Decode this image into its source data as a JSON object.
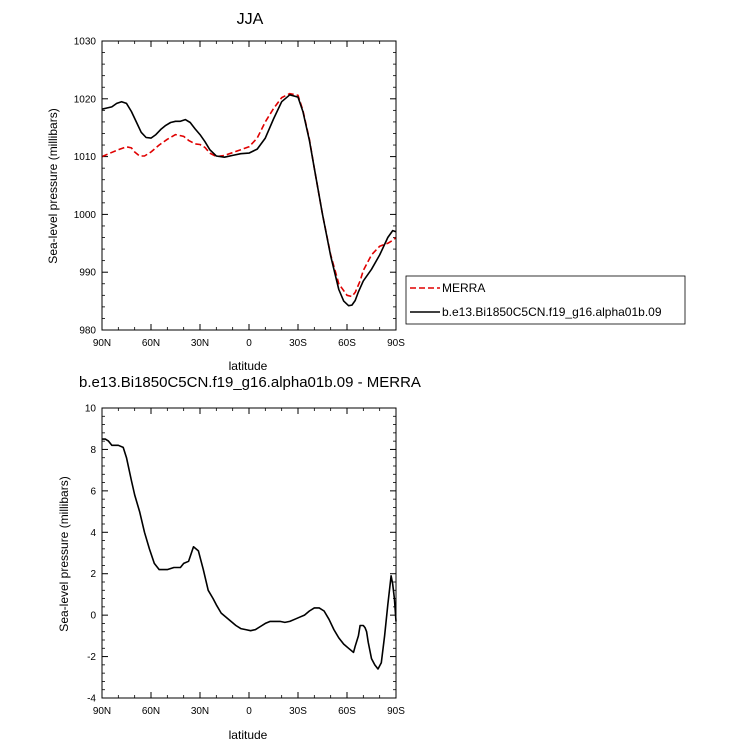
{
  "chart_data": [
    {
      "type": "line",
      "title": "JJA",
      "xlabel": "latitude",
      "ylabel": "Sea-level pressure (millibars)",
      "xlim": [
        90,
        -90
      ],
      "ylim": [
        980,
        1030
      ],
      "xtick_labels": [
        "90N",
        "60N",
        "30N",
        "0",
        "30S",
        "60S",
        "90S"
      ],
      "xtick_values": [
        90,
        60,
        30,
        0,
        -30,
        -60,
        -90
      ],
      "ytick_values": [
        980,
        990,
        1000,
        1010,
        1020,
        1030
      ],
      "legend": {
        "placement": "right",
        "entries": [
          "MERRA",
          "b.e13.Bi1850C5CN.f19_g16.alpha01b.09"
        ]
      },
      "series": [
        {
          "name": "MERRA",
          "color": "#e00000",
          "dash": "dashed",
          "x": [
            90,
            85,
            80,
            75,
            72,
            70,
            67,
            64,
            60,
            55,
            50,
            45,
            40,
            37,
            33,
            30,
            27,
            24,
            20,
            15,
            10,
            5,
            0,
            -5,
            -10,
            -15,
            -20,
            -25,
            -30,
            -33,
            -37,
            -40,
            -45,
            -50,
            -55,
            -60,
            -63,
            -65,
            -68,
            -70,
            -75,
            -80,
            -85,
            -88,
            -90
          ],
          "y": [
            1010.0,
            1010.6,
            1011.2,
            1011.7,
            1011.5,
            1010.8,
            1010.1,
            1010.1,
            1010.8,
            1012.0,
            1013.0,
            1013.8,
            1013.5,
            1012.8,
            1012.2,
            1012.1,
            1011.6,
            1010.6,
            1010.0,
            1010.2,
            1010.7,
            1011.2,
            1011.7,
            1013.2,
            1016.0,
            1018.3,
            1020.2,
            1020.9,
            1020.6,
            1018.0,
            1013.0,
            1008.0,
            1000.0,
            993.0,
            988.0,
            986.0,
            985.8,
            986.5,
            988.5,
            990.3,
            993.0,
            994.5,
            995.0,
            995.5,
            996.0
          ]
        },
        {
          "name": "b.e13.Bi1850C5CN.f19_g16.alpha01b.09",
          "color": "#000000",
          "dash": "solid",
          "x": [
            90,
            87,
            84,
            81,
            78,
            75,
            72,
            69,
            66,
            63,
            60,
            57,
            54,
            51,
            48,
            45,
            42,
            39,
            36,
            33,
            30,
            27,
            24,
            20,
            15,
            10,
            5,
            0,
            -5,
            -10,
            -15,
            -20,
            -25,
            -30,
            -33,
            -37,
            -40,
            -45,
            -50,
            -55,
            -58,
            -61,
            -63,
            -65,
            -67,
            -70,
            -75,
            -80,
            -85,
            -88,
            -90
          ],
          "y": [
            1018.2,
            1018.4,
            1018.6,
            1019.2,
            1019.5,
            1019.2,
            1017.8,
            1016.0,
            1014.2,
            1013.3,
            1013.2,
            1013.8,
            1014.7,
            1015.4,
            1015.9,
            1016.1,
            1016.1,
            1016.4,
            1015.9,
            1014.8,
            1013.8,
            1012.6,
            1011.2,
            1010.1,
            1009.9,
            1010.2,
            1010.5,
            1010.6,
            1011.3,
            1013.2,
            1016.5,
            1019.5,
            1020.7,
            1020.3,
            1017.8,
            1012.8,
            1008.0,
            1000.0,
            992.8,
            987.0,
            985.0,
            984.2,
            984.3,
            985.1,
            986.6,
            988.5,
            990.5,
            993.0,
            996.0,
            997.2,
            997.0
          ]
        }
      ]
    },
    {
      "type": "line",
      "title": "b.e13.Bi1850C5CN.f19_g16.alpha01b.09 - MERRA",
      "xlabel": "latitude",
      "ylabel": "Sea-level pressure (millibars)",
      "xlim": [
        90,
        -90
      ],
      "ylim": [
        -4,
        10
      ],
      "xtick_labels": [
        "90N",
        "60N",
        "30N",
        "0",
        "30S",
        "60S",
        "90S"
      ],
      "xtick_values": [
        90,
        60,
        30,
        0,
        -30,
        -60,
        -90
      ],
      "ytick_values": [
        -4,
        -2,
        0,
        2,
        4,
        6,
        8,
        10
      ],
      "series": [
        {
          "color": "#000000",
          "dash": "solid",
          "x": [
            90,
            88,
            86,
            84,
            80,
            77,
            75,
            72,
            70,
            67,
            64,
            61,
            58,
            55,
            50,
            46,
            44,
            42,
            40,
            37,
            34,
            31,
            28,
            25,
            22,
            20,
            17,
            14,
            11,
            8,
            5,
            2,
            -1,
            -4,
            -7,
            -10,
            -13,
            -16,
            -19,
            -22,
            -25,
            -28,
            -31,
            -34,
            -37,
            -40,
            -43,
            -46,
            -49,
            -52,
            -55,
            -58,
            -61,
            -64,
            -65,
            -67,
            -68,
            -70,
            -71,
            -72,
            -73,
            -75,
            -77,
            -79,
            -81,
            -83,
            -85,
            -87,
            -88,
            -89,
            -90
          ],
          "y": [
            8.5,
            8.5,
            8.4,
            8.2,
            8.2,
            8.1,
            7.6,
            6.5,
            5.8,
            5.0,
            4.0,
            3.2,
            2.5,
            2.2,
            2.2,
            2.3,
            2.3,
            2.3,
            2.5,
            2.6,
            3.3,
            3.1,
            2.2,
            1.2,
            0.8,
            0.5,
            0.1,
            -0.1,
            -0.3,
            -0.5,
            -0.65,
            -0.7,
            -0.75,
            -0.7,
            -0.55,
            -0.4,
            -0.3,
            -0.3,
            -0.3,
            -0.35,
            -0.3,
            -0.2,
            -0.1,
            0.0,
            0.2,
            0.35,
            0.35,
            0.2,
            -0.2,
            -0.7,
            -1.1,
            -1.4,
            -1.6,
            -1.8,
            -1.5,
            -1.0,
            -0.5,
            -0.5,
            -0.6,
            -0.8,
            -1.3,
            -2.1,
            -2.4,
            -2.6,
            -2.3,
            -1.0,
            0.5,
            1.9,
            1.5,
            0.8,
            -0.3
          ]
        }
      ]
    }
  ]
}
